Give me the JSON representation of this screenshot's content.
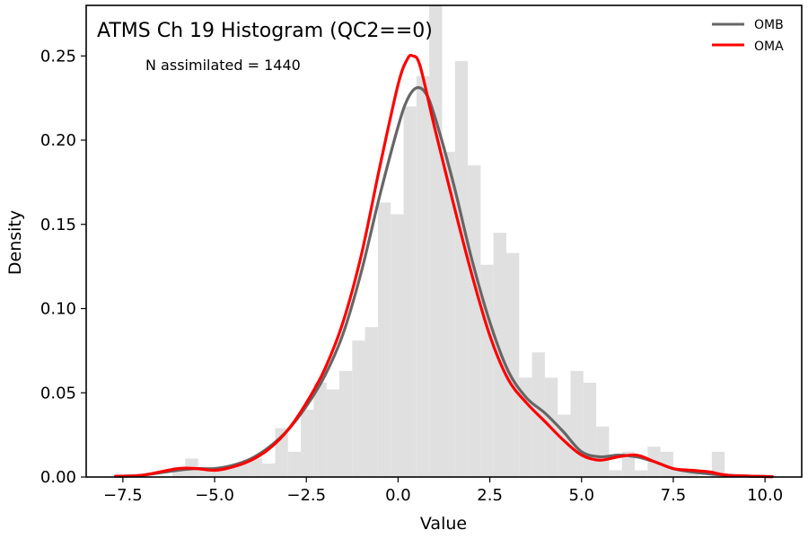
{
  "chart_data": {
    "type": "histogram",
    "title": "ATMS Ch 19 Histogram (QC2==0)",
    "annotation": "N assimilated = 1440",
    "xlabel": "Value",
    "ylabel": "Density",
    "xlim": [
      -8.5,
      11.0
    ],
    "ylim": [
      0,
      0.28
    ],
    "x_ticks": [
      -7.5,
      -5.0,
      -2.5,
      0.0,
      2.5,
      5.0,
      7.5,
      10.0
    ],
    "x_tick_labels": [
      "−7.5",
      "−5.0",
      "−2.5",
      "0.0",
      "2.5",
      "5.0",
      "7.5",
      "10.0"
    ],
    "y_ticks": [
      0.0,
      0.05,
      0.1,
      0.15,
      0.2,
      0.25
    ],
    "y_tick_labels": [
      "0.00",
      "0.05",
      "0.10",
      "0.15",
      "0.20",
      "0.25"
    ],
    "legend": {
      "position": "top-right",
      "entries": [
        "OMB",
        "OMA"
      ]
    },
    "colors": {
      "omb": "#666666",
      "oma": "#ff0000",
      "hist": "#e0e0e0"
    },
    "histogram": {
      "bin_width": 0.35,
      "bins": [
        {
          "x0": -6.15,
          "y": 0.006
        },
        {
          "x0": -5.8,
          "y": 0.011
        },
        {
          "x0": -5.45,
          "y": 0.006
        },
        {
          "x0": -5.1,
          "y": 0.006
        },
        {
          "x0": -4.75,
          "y": 0.006
        },
        {
          "x0": -4.4,
          "y": 0.008
        },
        {
          "x0": -4.05,
          "y": 0.011
        },
        {
          "x0": -3.7,
          "y": 0.008
        },
        {
          "x0": -3.35,
          "y": 0.029
        },
        {
          "x0": -3.0,
          "y": 0.015
        },
        {
          "x0": -2.65,
          "y": 0.04
        },
        {
          "x0": -2.3,
          "y": 0.056
        },
        {
          "x0": -1.95,
          "y": 0.052
        },
        {
          "x0": -1.6,
          "y": 0.063
        },
        {
          "x0": -1.25,
          "y": 0.081
        },
        {
          "x0": -0.9,
          "y": 0.089
        },
        {
          "x0": -0.55,
          "y": 0.163
        },
        {
          "x0": -0.2,
          "y": 0.156
        },
        {
          "x0": 0.15,
          "y": 0.22
        },
        {
          "x0": 0.5,
          "y": 0.238
        },
        {
          "x0": 0.85,
          "y": 0.28
        },
        {
          "x0": 1.2,
          "y": 0.193
        },
        {
          "x0": 1.55,
          "y": 0.247
        },
        {
          "x0": 1.9,
          "y": 0.185
        },
        {
          "x0": 2.25,
          "y": 0.126
        },
        {
          "x0": 2.6,
          "y": 0.145
        },
        {
          "x0": 2.95,
          "y": 0.133
        },
        {
          "x0": 3.3,
          "y": 0.059
        },
        {
          "x0": 3.65,
          "y": 0.074
        },
        {
          "x0": 4.0,
          "y": 0.059
        },
        {
          "x0": 4.35,
          "y": 0.037
        },
        {
          "x0": 4.7,
          "y": 0.063
        },
        {
          "x0": 5.05,
          "y": 0.056
        },
        {
          "x0": 5.4,
          "y": 0.03
        },
        {
          "x0": 5.75,
          "y": 0.004
        },
        {
          "x0": 6.1,
          "y": 0.015
        },
        {
          "x0": 6.45,
          "y": 0.004
        },
        {
          "x0": 6.8,
          "y": 0.018
        },
        {
          "x0": 7.15,
          "y": 0.015
        },
        {
          "x0": 7.5,
          "y": 0.004
        },
        {
          "x0": 7.85,
          "y": 0.004
        },
        {
          "x0": 8.55,
          "y": 0.015
        }
      ]
    },
    "series": [
      {
        "name": "OMB",
        "x": [
          -7.7,
          -7.0,
          -6.0,
          -5.5,
          -5.0,
          -4.5,
          -4.0,
          -3.5,
          -3.0,
          -2.5,
          -2.0,
          -1.5,
          -1.0,
          -0.5,
          0.0,
          0.25,
          0.5,
          0.75,
          1.0,
          1.5,
          2.0,
          2.5,
          3.0,
          3.5,
          4.0,
          4.5,
          5.0,
          5.5,
          6.0,
          6.5,
          7.0,
          7.5,
          8.0,
          9.0,
          10.2
        ],
        "y": [
          0.0005,
          0.001,
          0.004,
          0.005,
          0.005,
          0.007,
          0.011,
          0.018,
          0.028,
          0.042,
          0.06,
          0.085,
          0.122,
          0.167,
          0.208,
          0.224,
          0.231,
          0.228,
          0.214,
          0.175,
          0.13,
          0.092,
          0.063,
          0.047,
          0.038,
          0.027,
          0.015,
          0.012,
          0.013,
          0.012,
          0.009,
          0.005,
          0.003,
          0.001,
          0.0002
        ]
      },
      {
        "name": "OMA",
        "x": [
          -7.7,
          -7.0,
          -6.0,
          -5.5,
          -5.0,
          -4.5,
          -4.0,
          -3.5,
          -3.0,
          -2.5,
          -2.0,
          -1.5,
          -1.0,
          -0.5,
          0.0,
          0.25,
          0.4,
          0.6,
          1.0,
          1.5,
          2.0,
          2.5,
          3.0,
          3.5,
          4.0,
          4.5,
          5.0,
          5.5,
          6.0,
          6.5,
          7.0,
          7.5,
          8.0,
          8.5,
          9.0,
          10.2
        ],
        "y": [
          0.0005,
          0.001,
          0.005,
          0.005,
          0.004,
          0.006,
          0.01,
          0.017,
          0.028,
          0.044,
          0.064,
          0.092,
          0.132,
          0.184,
          0.233,
          0.248,
          0.25,
          0.244,
          0.207,
          0.163,
          0.121,
          0.084,
          0.058,
          0.044,
          0.033,
          0.022,
          0.013,
          0.01,
          0.012,
          0.013,
          0.009,
          0.005,
          0.004,
          0.003,
          0.001,
          0.0002
        ]
      }
    ]
  }
}
